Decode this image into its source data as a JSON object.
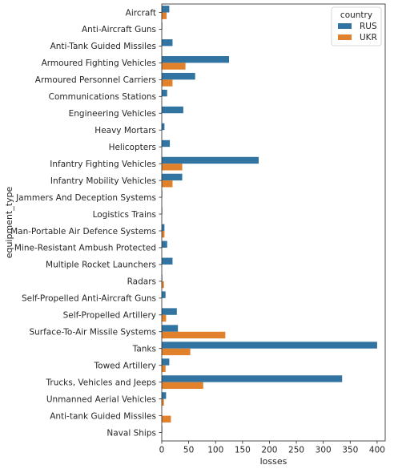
{
  "chart_data": {
    "type": "bar",
    "orientation": "horizontal",
    "xlabel": "losses",
    "ylabel": "equipment_type",
    "xlim": [
      0,
      415
    ],
    "xticks": [
      0,
      50,
      100,
      150,
      200,
      250,
      300,
      350,
      400
    ],
    "grid": false,
    "legend": {
      "title": "country",
      "placement": "top-right"
    },
    "categories": [
      "Aircraft",
      "Anti-Aircraft Guns",
      "Anti-Tank Guided Missiles",
      "Armoured Fighting Vehicles",
      "Armoured Personnel Carriers",
      "Communications Stations",
      "Engineering Vehicles",
      "Heavy Mortars",
      "Helicopters",
      "Infantry Fighting Vehicles",
      "Infantry Mobility Vehicles",
      "Jammers And Deception Systems",
      "Logistics Trains",
      "Man-Portable Air Defence Systems",
      "Mine-Resistant Ambush Protected",
      "Multiple Rocket Launchers",
      "Radars",
      "Self-Propelled Anti-Aircraft Guns",
      "Self-Propelled Artillery",
      "Surface-To-Air Missile Systems",
      "Tanks",
      "Towed Artillery",
      "Trucks, Vehicles and Jeeps",
      "Unmanned Aerial Vehicles",
      "Anti-tank Guided Missiles",
      "Naval Ships"
    ],
    "series": [
      {
        "name": "RUS",
        "color": "#3274a1",
        "values": [
          14,
          1,
          20,
          125,
          62,
          10,
          40,
          5,
          15,
          180,
          38,
          1,
          1,
          5,
          10,
          20,
          1,
          7,
          28,
          30,
          400,
          14,
          335,
          8,
          0,
          1
        ]
      },
      {
        "name": "UKR",
        "color": "#e1812c",
        "values": [
          9,
          0,
          0,
          44,
          20,
          0,
          0,
          0,
          0,
          38,
          20,
          0,
          0,
          5,
          0,
          0,
          4,
          0,
          8,
          118,
          53,
          7,
          77,
          4,
          17,
          0
        ]
      }
    ]
  }
}
